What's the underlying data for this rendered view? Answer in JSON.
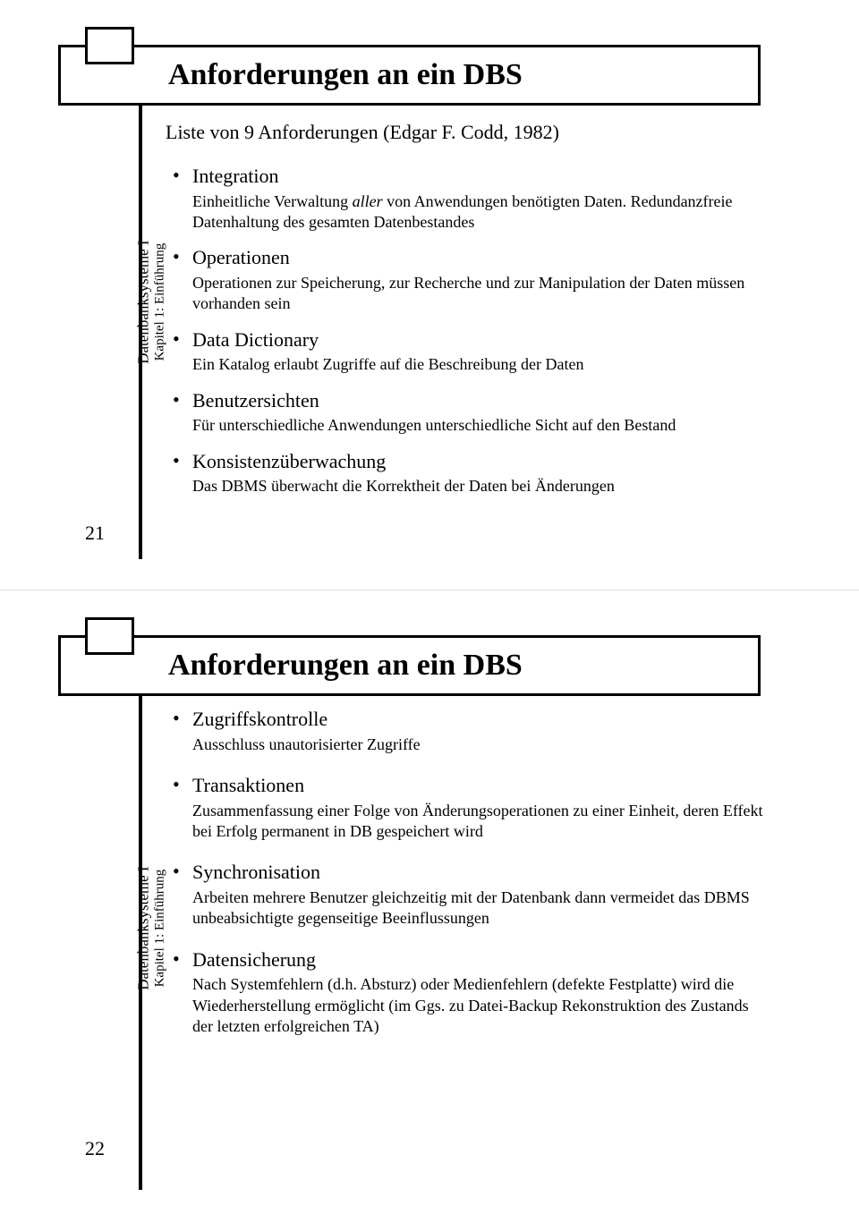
{
  "slides": [
    {
      "title": "Anforderungen an ein DBS",
      "side_label_line1": "Datenbanksysteme I",
      "side_label_line2": "Kapitel 1: Einführung",
      "page_number": "21",
      "subtitle": "Liste von 9 Anforderungen (Edgar F. Codd, 1982)",
      "items": [
        {
          "title": "Integration",
          "desc_pre": "Einheitliche Verwaltung ",
          "desc_em": "aller",
          "desc_post": " von Anwendungen benötigten Daten. Redundanzfreie Datenhaltung des gesamten Datenbestandes"
        },
        {
          "title": "Operationen",
          "desc": "Operationen zur Speicherung, zur Recherche und zur Manipulation der Daten müssen vorhanden sein"
        },
        {
          "title": "Data Dictionary",
          "desc": "Ein Katalog erlaubt Zugriffe auf die Beschreibung der Daten"
        },
        {
          "title": "Benutzersichten",
          "desc": "Für unterschiedliche Anwendungen unterschiedliche Sicht auf den Bestand"
        },
        {
          "title": "Konsistenzüberwachung",
          "desc": "Das DBMS überwacht die Korrektheit der Daten bei Änderungen"
        }
      ]
    },
    {
      "title": "Anforderungen an ein DBS",
      "side_label_line1": "Datenbanksysteme I",
      "side_label_line2": "Kapitel 1: Einführung",
      "page_number": "22",
      "items": [
        {
          "title": "Zugriffskontrolle",
          "desc": "Ausschluss unautorisierter Zugriffe"
        },
        {
          "title": "Transaktionen",
          "desc": "Zusammenfassung einer Folge von Änderungsoperationen zu einer Einheit, deren Effekt bei Erfolg permanent in DB gespeichert wird"
        },
        {
          "title": "Synchronisation",
          "desc": "Arbeiten mehrere Benutzer gleichzeitig mit der Datenbank dann vermeidet das DBMS unbeabsichtigte gegenseitige Beeinflussungen"
        },
        {
          "title": "Datensicherung",
          "desc": "Nach Systemfehlern (d.h. Absturz) oder Medienfehlern (defekte Festplatte) wird die Wiederherstellung ermöglicht (im Ggs. zu Datei-Backup Rekonstruktion des Zustands der letzten erfolgreichen TA)"
        }
      ]
    }
  ]
}
